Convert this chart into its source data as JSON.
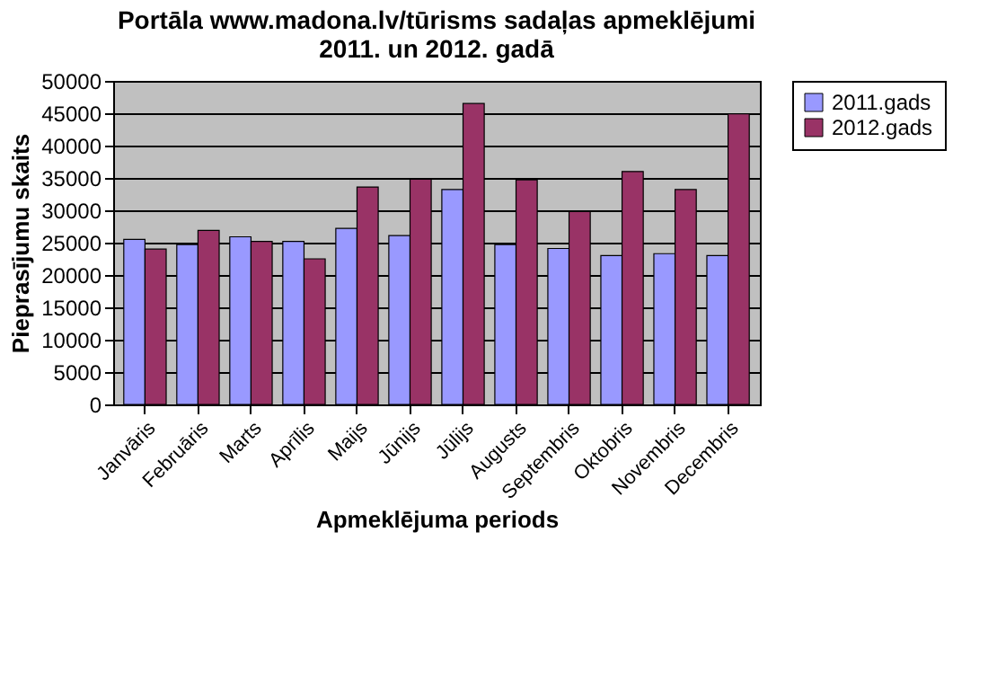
{
  "chart_data": {
    "type": "bar",
    "title": [
      "Portāla www.madona.lv/tūrisms sadaļas apmeklējumi",
      "2011. un  2012. gadā"
    ],
    "xlabel": "Apmeklējuma periods",
    "ylabel": "Pieprasījumu skaits",
    "categories": [
      "Janvāris",
      "Februāris",
      "Marts",
      "Aprīlis",
      "Maijs",
      "Jūnijs",
      "Jūlijs",
      "Augusts",
      "Septembris",
      "Oktobris",
      "Novembris",
      "Decembris"
    ],
    "series": [
      {
        "name": "2011.gads",
        "color": "#9999ff",
        "values": [
          25500,
          24700,
          25900,
          25200,
          27200,
          26100,
          33200,
          24700,
          24100,
          23000,
          23300,
          23000
        ]
      },
      {
        "name": "2012.gads",
        "color": "#993366",
        "values": [
          24000,
          26900,
          25200,
          22500,
          33600,
          34800,
          46500,
          34700,
          29800,
          36000,
          33200,
          44900
        ]
      }
    ],
    "ylim": [
      0,
      50000
    ],
    "yticks": [
      0,
      5000,
      10000,
      15000,
      20000,
      25000,
      30000,
      35000,
      40000,
      45000,
      50000
    ],
    "grid": "y",
    "legend": "right"
  }
}
